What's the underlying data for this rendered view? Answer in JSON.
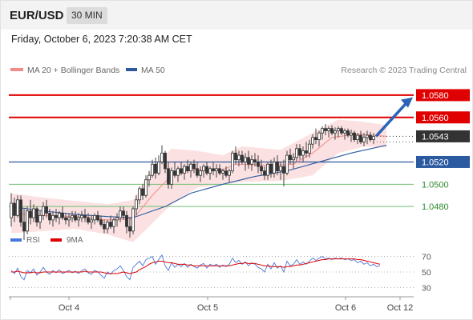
{
  "header": {
    "symbol": "EUR/USD",
    "timeframe": "30 MIN"
  },
  "datetime": "Friday, October 6, 2023 7:20:38 AM CET",
  "legend": {
    "ma20": "MA 20 + Bollinger Bands",
    "ma50": "MA 50",
    "ma20_color": "#f28b8b",
    "ma50_color": "#2c5aa0",
    "band_color": "#fbe1e1"
  },
  "copyright": "Research © 2023 Trading Central",
  "chart_data": {
    "type": "candlestick",
    "price_axis": {
      "min": 1.0455,
      "max": 1.0595
    },
    "x_ticks": [
      "Oct 4",
      "Oct 5",
      "Oct 6",
      "Oct 12"
    ],
    "resistance_levels": [
      {
        "value": 1.058,
        "label": "1.0580",
        "color": "#e00000",
        "style": "red-label"
      },
      {
        "value": 1.056,
        "label": "1.0560",
        "color": "#e00000",
        "style": "red-label"
      }
    ],
    "support_levels": [
      {
        "value": 1.052,
        "label": "1.0520",
        "color": "#2c5aa0",
        "style": "blue-label"
      },
      {
        "value": 1.05,
        "label": "1.0500",
        "color": "#6fbf6f",
        "style": "green-text"
      },
      {
        "value": 1.048,
        "label": "1.0480",
        "color": "#6fbf6f",
        "style": "green-text"
      }
    ],
    "last_price": {
      "value": 1.0543,
      "label": "1.0543"
    },
    "forecast_arrow": {
      "from": 1.0543,
      "to": 1.0578,
      "color": "#2a64b8"
    },
    "candles": [
      [
        1.047,
        1.0492,
        1.0462,
        1.0483
      ],
      [
        1.0483,
        1.0488,
        1.0466,
        1.0472
      ],
      [
        1.0472,
        1.049,
        1.047,
        1.0486
      ],
      [
        1.0486,
        1.049,
        1.0462,
        1.0466
      ],
      [
        1.0466,
        1.0478,
        1.045,
        1.0458
      ],
      [
        1.0458,
        1.048,
        1.0455,
        1.0476
      ],
      [
        1.0476,
        1.0486,
        1.0464,
        1.047
      ],
      [
        1.047,
        1.0482,
        1.0466,
        1.0478
      ],
      [
        1.0478,
        1.048,
        1.0462,
        1.0466
      ],
      [
        1.0466,
        1.0476,
        1.046,
        1.0472
      ],
      [
        1.0472,
        1.0484,
        1.0468,
        1.048
      ],
      [
        1.048,
        1.0486,
        1.047,
        1.0474
      ],
      [
        1.0474,
        1.0478,
        1.0464,
        1.0468
      ],
      [
        1.0468,
        1.0476,
        1.0462,
        1.0472
      ],
      [
        1.0472,
        1.0478,
        1.0466,
        1.047
      ],
      [
        1.047,
        1.0476,
        1.0464,
        1.0474
      ],
      [
        1.0474,
        1.048,
        1.0468,
        1.047
      ],
      [
        1.047,
        1.0474,
        1.0464,
        1.0468
      ],
      [
        1.0468,
        1.0474,
        1.0462,
        1.047
      ],
      [
        1.047,
        1.0476,
        1.0466,
        1.0472
      ],
      [
        1.0472,
        1.0476,
        1.0466,
        1.0468
      ],
      [
        1.0468,
        1.0474,
        1.0462,
        1.047
      ],
      [
        1.047,
        1.0476,
        1.0466,
        1.0472
      ],
      [
        1.0472,
        1.0478,
        1.0466,
        1.047
      ],
      [
        1.047,
        1.0474,
        1.0464,
        1.0466
      ],
      [
        1.0466,
        1.0472,
        1.046,
        1.0468
      ],
      [
        1.0468,
        1.0474,
        1.0464,
        1.0472
      ],
      [
        1.0472,
        1.0476,
        1.0466,
        1.0468
      ],
      [
        1.0468,
        1.0472,
        1.0462,
        1.0464
      ],
      [
        1.0464,
        1.0468,
        1.0456,
        1.046
      ],
      [
        1.046,
        1.0468,
        1.0456,
        1.0466
      ],
      [
        1.0466,
        1.0472,
        1.046,
        1.0462
      ],
      [
        1.0462,
        1.047,
        1.0456,
        1.0468
      ],
      [
        1.0468,
        1.0474,
        1.0462,
        1.047
      ],
      [
        1.047,
        1.048,
        1.0466,
        1.0476
      ],
      [
        1.0476,
        1.048,
        1.0468,
        1.0472
      ],
      [
        1.0472,
        1.0476,
        1.0456,
        1.0462
      ],
      [
        1.0462,
        1.047,
        1.0452,
        1.0458
      ],
      [
        1.0458,
        1.048,
        1.0455,
        1.0478
      ],
      [
        1.0478,
        1.049,
        1.0472,
        1.0486
      ],
      [
        1.0486,
        1.0498,
        1.0482,
        1.0496
      ],
      [
        1.0496,
        1.05,
        1.0486,
        1.049
      ],
      [
        1.049,
        1.0508,
        1.0488,
        1.0504
      ],
      [
        1.0504,
        1.0512,
        1.0498,
        1.0508
      ],
      [
        1.0508,
        1.0522,
        1.0506,
        1.0518
      ],
      [
        1.0518,
        1.0524,
        1.0505,
        1.051
      ],
      [
        1.051,
        1.0526,
        1.0508,
        1.052
      ],
      [
        1.052,
        1.0535,
        1.0518,
        1.0528
      ],
      [
        1.0528,
        1.053,
        1.051,
        1.0514
      ],
      [
        1.0514,
        1.052,
        1.0496,
        1.05
      ],
      [
        1.05,
        1.0515,
        1.0496,
        1.0512
      ],
      [
        1.0512,
        1.052,
        1.0506,
        1.0508
      ],
      [
        1.0508,
        1.0516,
        1.0502,
        1.0514
      ],
      [
        1.0514,
        1.052,
        1.0508,
        1.051
      ],
      [
        1.051,
        1.0518,
        1.0504,
        1.0516
      ],
      [
        1.0516,
        1.0522,
        1.051,
        1.0512
      ],
      [
        1.0512,
        1.052,
        1.0506,
        1.0518
      ],
      [
        1.0518,
        1.0522,
        1.051,
        1.0514
      ],
      [
        1.0514,
        1.052,
        1.0506,
        1.0508
      ],
      [
        1.0508,
        1.0516,
        1.0502,
        1.0512
      ],
      [
        1.0512,
        1.0518,
        1.0506,
        1.0516
      ],
      [
        1.0516,
        1.052,
        1.0508,
        1.051
      ],
      [
        1.051,
        1.0516,
        1.0504,
        1.0514
      ],
      [
        1.0514,
        1.052,
        1.0508,
        1.0512
      ],
      [
        1.0512,
        1.0518,
        1.0506,
        1.0514
      ],
      [
        1.0514,
        1.0518,
        1.0508,
        1.051
      ],
      [
        1.051,
        1.0514,
        1.0504,
        1.0512
      ],
      [
        1.0512,
        1.0516,
        1.0506,
        1.0508
      ],
      [
        1.0508,
        1.0514,
        1.0502,
        1.0512
      ],
      [
        1.0512,
        1.053,
        1.051,
        1.0528
      ],
      [
        1.0528,
        1.0534,
        1.0518,
        1.0522
      ],
      [
        1.0522,
        1.053,
        1.0516,
        1.0526
      ],
      [
        1.0526,
        1.053,
        1.0518,
        1.052
      ],
      [
        1.052,
        1.0528,
        1.0512,
        1.0524
      ],
      [
        1.0524,
        1.053,
        1.0514,
        1.0518
      ],
      [
        1.0518,
        1.0526,
        1.0512,
        1.0522
      ],
      [
        1.0522,
        1.0528,
        1.0516,
        1.052
      ],
      [
        1.052,
        1.0526,
        1.051,
        1.0516
      ],
      [
        1.0516,
        1.0522,
        1.0508,
        1.0512
      ],
      [
        1.0512,
        1.0516,
        1.0504,
        1.0508
      ],
      [
        1.0508,
        1.052,
        1.0504,
        1.0518
      ],
      [
        1.0518,
        1.0522,
        1.0506,
        1.051
      ],
      [
        1.051,
        1.0524,
        1.0506,
        1.052
      ],
      [
        1.052,
        1.0526,
        1.0508,
        1.0512
      ],
      [
        1.0512,
        1.052,
        1.0504,
        1.0516
      ],
      [
        1.0516,
        1.0522,
        1.0498,
        1.051
      ],
      [
        1.051,
        1.053,
        1.0508,
        1.0526
      ],
      [
        1.0526,
        1.0532,
        1.0518,
        1.0522
      ],
      [
        1.0522,
        1.0528,
        1.0514,
        1.0524
      ],
      [
        1.0524,
        1.0536,
        1.052,
        1.0532
      ],
      [
        1.0532,
        1.0536,
        1.0522,
        1.0526
      ],
      [
        1.0526,
        1.0534,
        1.052,
        1.053
      ],
      [
        1.053,
        1.0538,
        1.0524,
        1.0528
      ],
      [
        1.0528,
        1.054,
        1.0524,
        1.0536
      ],
      [
        1.0536,
        1.0545,
        1.0532,
        1.0542
      ],
      [
        1.0542,
        1.055,
        1.0536,
        1.054
      ],
      [
        1.054,
        1.0548,
        1.0534,
        1.0546
      ],
      [
        1.0546,
        1.0552,
        1.054,
        1.055
      ],
      [
        1.055,
        1.0554,
        1.0544,
        1.0548
      ],
      [
        1.0548,
        1.0552,
        1.0542,
        1.055
      ],
      [
        1.055,
        1.0553,
        1.0544,
        1.0546
      ],
      [
        1.0546,
        1.0551,
        1.054,
        1.0548
      ],
      [
        1.0548,
        1.0552,
        1.0542,
        1.055
      ],
      [
        1.055,
        1.0552,
        1.0544,
        1.0546
      ],
      [
        1.0546,
        1.055,
        1.054,
        1.0548
      ],
      [
        1.0548,
        1.055,
        1.0542,
        1.0544
      ],
      [
        1.0544,
        1.0549,
        1.0538,
        1.0546
      ],
      [
        1.0546,
        1.0548,
        1.0538,
        1.054
      ],
      [
        1.054,
        1.0546,
        1.0536,
        1.0544
      ],
      [
        1.0544,
        1.0548,
        1.0536,
        1.0538
      ],
      [
        1.0538,
        1.0546,
        1.0534,
        1.0542
      ],
      [
        1.0542,
        1.0548,
        1.0536,
        1.0544
      ],
      [
        1.0544,
        1.0547,
        1.0538,
        1.054
      ],
      [
        1.054,
        1.0546,
        1.0536,
        1.0543
      ]
    ],
    "ma20": [
      [
        0,
        1.0474
      ],
      [
        10,
        1.0472
      ],
      [
        20,
        1.0471
      ],
      [
        30,
        1.0468
      ],
      [
        38,
        1.0469
      ],
      [
        44,
        1.049
      ],
      [
        50,
        1.0508
      ],
      [
        56,
        1.0513
      ],
      [
        66,
        1.0513
      ],
      [
        70,
        1.0518
      ],
      [
        80,
        1.0517
      ],
      [
        88,
        1.0518
      ],
      [
        94,
        1.0528
      ],
      [
        100,
        1.0542
      ],
      [
        108,
        1.0545
      ],
      [
        117,
        1.0543
      ]
    ],
    "ma50": [
      [
        0,
        1.048
      ],
      [
        10,
        1.0476
      ],
      [
        20,
        1.0473
      ],
      [
        30,
        1.0471
      ],
      [
        38,
        1.047
      ],
      [
        48,
        1.048
      ],
      [
        56,
        1.0492
      ],
      [
        66,
        1.05
      ],
      [
        76,
        1.0507
      ],
      [
        86,
        1.0512
      ],
      [
        96,
        1.052
      ],
      [
        106,
        1.0528
      ],
      [
        117,
        1.0535
      ]
    ],
    "bb_upper": [
      [
        0,
        1.0492
      ],
      [
        10,
        1.0488
      ],
      [
        20,
        1.0485
      ],
      [
        30,
        1.0482
      ],
      [
        38,
        1.0486
      ],
      [
        44,
        1.0515
      ],
      [
        50,
        1.0532
      ],
      [
        58,
        1.053
      ],
      [
        66,
        1.0526
      ],
      [
        72,
        1.0534
      ],
      [
        84,
        1.0531
      ],
      [
        94,
        1.0546
      ],
      [
        102,
        1.0558
      ],
      [
        110,
        1.0556
      ],
      [
        117,
        1.0553
      ]
    ],
    "bb_lower": [
      [
        0,
        1.0456
      ],
      [
        10,
        1.0458
      ],
      [
        20,
        1.046
      ],
      [
        30,
        1.0455
      ],
      [
        38,
        1.0448
      ],
      [
        44,
        1.0465
      ],
      [
        50,
        1.0482
      ],
      [
        58,
        1.0497
      ],
      [
        66,
        1.05
      ],
      [
        72,
        1.0502
      ],
      [
        84,
        1.0503
      ],
      [
        94,
        1.0508
      ],
      [
        102,
        1.0528
      ],
      [
        110,
        1.0534
      ],
      [
        117,
        1.0533
      ]
    ],
    "rsi": {
      "label": "RSI",
      "ma_label": "9MA",
      "color": "#4a78d8",
      "ma_color": "#e00000",
      "levels": [
        70,
        50,
        30
      ],
      "level_labels": [
        "70",
        "50",
        "30"
      ],
      "axis": {
        "min": 20,
        "max": 80
      },
      "values": [
        52,
        48,
        55,
        44,
        40,
        52,
        49,
        54,
        46,
        50,
        56,
        50,
        47,
        52,
        49,
        53,
        48,
        50,
        52,
        49,
        51,
        48,
        52,
        54,
        49,
        47,
        52,
        50,
        46,
        42,
        50,
        47,
        52,
        54,
        58,
        52,
        44,
        40,
        56,
        60,
        64,
        58,
        66,
        68,
        70,
        60,
        66,
        72,
        58,
        52,
        62,
        56,
        60,
        57,
        61,
        56,
        60,
        57,
        55,
        59,
        61,
        55,
        60,
        58,
        60,
        56,
        59,
        57,
        60,
        68,
        62,
        65,
        60,
        63,
        58,
        62,
        60,
        56,
        54,
        50,
        60,
        54,
        62,
        55,
        58,
        50,
        64,
        58,
        60,
        66,
        60,
        63,
        60,
        64,
        68,
        65,
        68,
        70,
        67,
        68,
        66,
        68,
        67,
        68,
        66,
        67,
        65,
        66,
        62,
        64,
        60,
        62,
        58,
        60,
        57,
        58
      ],
      "ma_values": [
        50,
        50,
        51,
        50,
        49,
        49,
        49,
        50,
        49,
        49,
        50,
        50,
        50,
        50,
        50,
        50,
        50,
        50,
        50,
        50,
        50,
        50,
        50,
        51,
        50,
        50,
        50,
        50,
        50,
        49,
        48,
        48,
        48,
        48,
        49,
        50,
        49,
        48,
        49,
        50,
        53,
        55,
        57,
        60,
        62,
        63,
        64,
        64,
        63,
        62,
        62,
        61,
        60,
        60,
        60,
        59,
        59,
        58,
        58,
        58,
        58,
        58,
        58,
        58,
        58,
        58,
        58,
        58,
        58,
        59,
        60,
        61,
        61,
        62,
        61,
        61,
        61,
        60,
        59,
        58,
        58,
        57,
        57,
        57,
        57,
        56,
        57,
        57,
        58,
        59,
        59,
        60,
        61,
        62,
        63,
        64,
        65,
        66,
        66,
        67,
        67,
        67,
        67,
        67,
        67,
        67,
        67,
        67,
        66,
        66,
        65,
        64,
        63,
        62,
        61,
        60
      ]
    }
  }
}
